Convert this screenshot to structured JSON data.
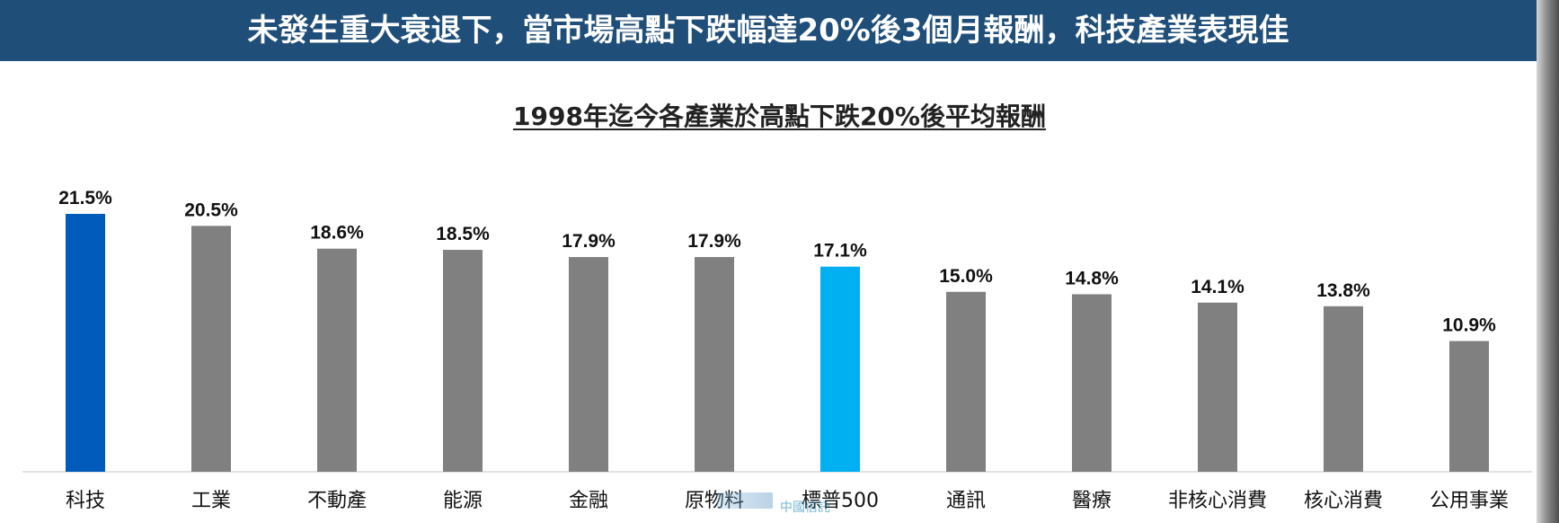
{
  "banner": {
    "title": "未發生重大衰退下，當市場高點下跌幅達20%後3個月報酬，科技產業表現佳"
  },
  "colors": {
    "banner_bg": "#1f4e79",
    "highlight_primary": "#005bbb",
    "highlight_secondary": "#00b0f0",
    "default_bar": "#808080"
  },
  "chart_data": {
    "type": "bar",
    "title": "1998年迄今各產業於高點下跌20%後平均報酬",
    "categories": [
      "科技",
      "工業",
      "不動產",
      "能源",
      "金融",
      "原物料",
      "標普500",
      "通訊",
      "醫療",
      "非核心消費",
      "核心消費",
      "公用事業"
    ],
    "values": [
      21.5,
      20.5,
      18.6,
      18.5,
      17.9,
      17.9,
      17.1,
      15.0,
      14.8,
      14.1,
      13.8,
      10.9
    ],
    "value_labels": [
      "21.5%",
      "20.5%",
      "18.6%",
      "18.5%",
      "17.9%",
      "17.9%",
      "17.1%",
      "15.0%",
      "14.8%",
      "14.1%",
      "13.8%",
      "10.9%"
    ],
    "bar_colors": [
      "#005bbb",
      "#808080",
      "#808080",
      "#808080",
      "#808080",
      "#808080",
      "#00b0f0",
      "#808080",
      "#808080",
      "#808080",
      "#808080",
      "#808080"
    ],
    "ylim": [
      0,
      21.5
    ],
    "xlabel": "",
    "ylabel": "",
    "grid": false,
    "legend": "none"
  },
  "watermark": {
    "text": "中國信託"
  }
}
